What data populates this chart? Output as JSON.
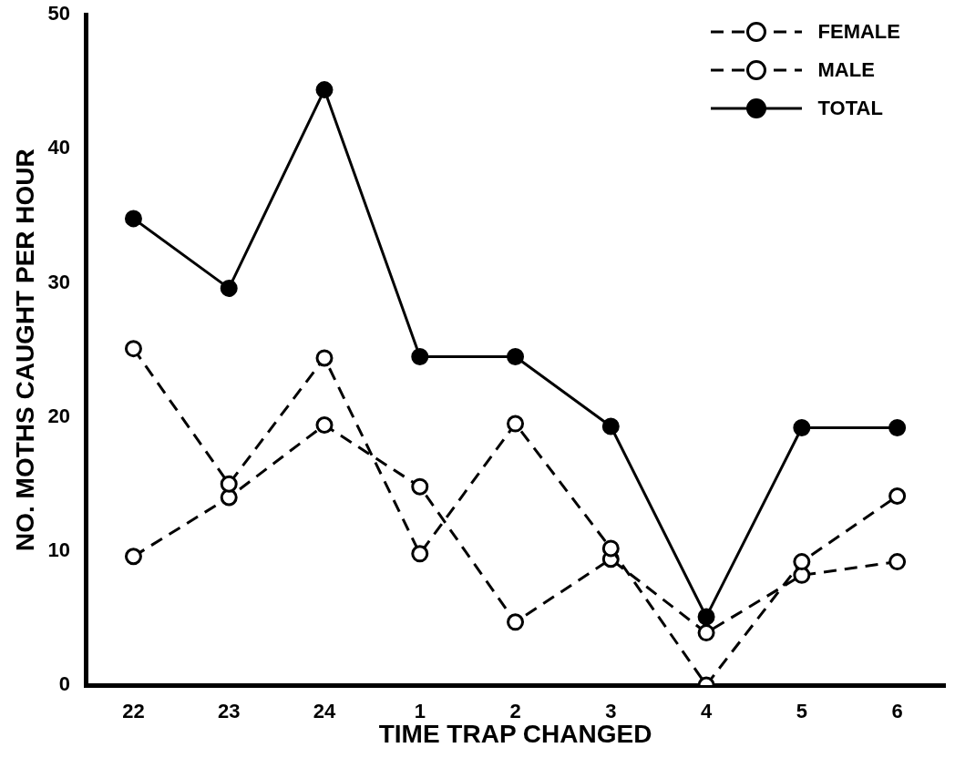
{
  "chart_data": {
    "type": "line",
    "xlabel": "TIME TRAP CHANGED",
    "ylabel": "NO. MOTHS CAUGHT PER HOUR",
    "categories": [
      "22",
      "23",
      "24",
      "1",
      "2",
      "3",
      "4",
      "5",
      "6"
    ],
    "series": [
      {
        "name": "FEMALE",
        "color": "#000000",
        "line_style": "dashed",
        "values": [
          25.1,
          15.0,
          24.4,
          9.8,
          19.5,
          10.2,
          0,
          9.2,
          14.1
        ]
      },
      {
        "name": "MALE",
        "color": "#000000",
        "line_style": "dashed",
        "values": [
          9.6,
          14.0,
          19.4,
          14.8,
          4.7,
          9.4,
          3.9,
          8.2,
          9.2
        ]
      },
      {
        "name": "TOTAL",
        "color": "#000000",
        "line_style": "solid",
        "values": [
          34.8,
          29.6,
          44.4,
          24.5,
          24.5,
          19.3,
          5.1,
          19.2,
          19.2
        ]
      }
    ],
    "ylim": [
      0,
      50
    ],
    "yticks": [
      0,
      10,
      20,
      30,
      40,
      50
    ],
    "grid": false,
    "legend": "top right",
    "marker": "circle"
  }
}
